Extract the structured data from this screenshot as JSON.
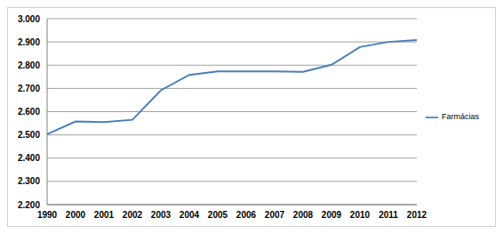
{
  "chart_data": {
    "type": "line",
    "categories": [
      "1990",
      "2000",
      "2001",
      "2002",
      "2003",
      "2004",
      "2005",
      "2006",
      "2007",
      "2008",
      "2009",
      "2010",
      "2011",
      "2012"
    ],
    "series": [
      {
        "name": "Farmácias",
        "color": "#4a7ebb",
        "values": [
          2503,
          2558,
          2555,
          2565,
          2692,
          2758,
          2773,
          2773,
          2773,
          2771,
          2802,
          2878,
          2900,
          2908
        ]
      }
    ],
    "ylim": [
      2200,
      3000
    ],
    "yticks": [
      {
        "value": 2200,
        "label": "2.200"
      },
      {
        "value": 2300,
        "label": "2.300"
      },
      {
        "value": 2400,
        "label": "2.400"
      },
      {
        "value": 2500,
        "label": "2.500"
      },
      {
        "value": 2600,
        "label": "2.600"
      },
      {
        "value": 2700,
        "label": "2.700"
      },
      {
        "value": 2800,
        "label": "2.800"
      },
      {
        "value": 2900,
        "label": "2.900"
      },
      {
        "value": 3000,
        "label": "3.000"
      }
    ],
    "grid": true,
    "legend": "right"
  }
}
